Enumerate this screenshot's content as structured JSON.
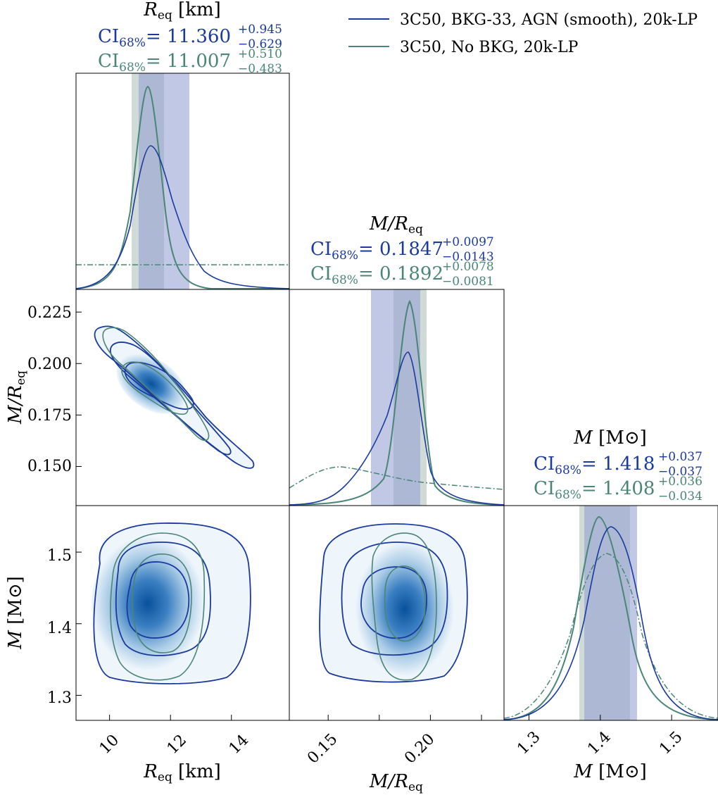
{
  "legend": {
    "items": [
      {
        "label": "3C50, BKG-33, AGN (smooth), 20k-LP",
        "color": "#1a3a9c"
      },
      {
        "label": "3C50, No BKG, 20k-LP",
        "color": "#4a8577"
      }
    ]
  },
  "colors": {
    "series_a": "#1a3a9c",
    "series_b": "#4a8577",
    "band_a": "#8e9bd2",
    "band_b": "#a9bdb7",
    "fill_dark": "#08519c",
    "fill_light": "#deebf7"
  },
  "params": {
    "req": {
      "title_sym": "R",
      "title_sub": "eq",
      "title_unit": " [km]",
      "ci_label": "CI",
      "ci_sub": "68%",
      "ci_a": {
        "val": "= 11.360",
        "plus": "+0.945",
        "minus": "−0.629"
      },
      "ci_b": {
        "val": "= 11.007",
        "plus": "+0.510",
        "minus": "−0.483"
      },
      "ticks": [
        "10",
        "12",
        "14"
      ]
    },
    "compactness": {
      "title_sym": "M/R",
      "title_sub": "eq",
      "title_unit": "",
      "ci_label": "CI",
      "ci_sub": "68%",
      "ci_a": {
        "val": "= 0.1847",
        "plus": "+0.0097",
        "minus": "−0.0143"
      },
      "ci_b": {
        "val": "= 0.1892",
        "plus": "+0.0078",
        "minus": "−0.0081"
      },
      "ticks_x": [
        "0.15",
        "0.20"
      ],
      "ticks_y": [
        "0.225",
        "0.200",
        "0.175",
        "0.150"
      ]
    },
    "mass": {
      "title_sym": "M",
      "title_unit": " [M⊙]",
      "ci_label": "CI",
      "ci_sub": "68%",
      "ci_a": {
        "val": "= 1.418",
        "plus": "+0.037",
        "minus": "−0.037"
      },
      "ci_b": {
        "val": "= 1.408",
        "plus": "+0.036",
        "minus": "−0.034"
      },
      "ticks_x": [
        "1.3",
        "1.4",
        "1.5"
      ],
      "ticks_y": [
        "1.5",
        "1.4",
        "1.3"
      ]
    }
  },
  "axis_labels": {
    "x_req": {
      "sym": "R",
      "sub": "eq",
      "unit": " [km]"
    },
    "x_comp": {
      "sym": "M/R",
      "sub": "eq"
    },
    "x_mass": {
      "sym": "M",
      "unit": " [M⊙]"
    },
    "y_comp": {
      "sym": "M/R",
      "sub": "eq"
    },
    "y_mass": {
      "sym": "M",
      "unit": " [M⊙]"
    }
  },
  "chart_data": {
    "type": "corner",
    "parameters": [
      "R_eq [km]",
      "M/R_eq",
      "M [M_sun]"
    ],
    "ranges": {
      "R_eq": [
        8.9,
        15.9
      ],
      "compactness": [
        0.131,
        0.236
      ],
      "mass": [
        1.265,
        1.565
      ]
    },
    "series": [
      {
        "name": "3C50, BKG-33, AGN (smooth), 20k-LP",
        "R_eq": {
          "median": 11.36,
          "plus": 0.945,
          "minus": 0.629
        },
        "compactness": {
          "median": 0.1847,
          "plus": 0.0097,
          "minus": 0.0143
        },
        "mass": {
          "median": 1.418,
          "plus": 0.037,
          "minus": 0.037
        }
      },
      {
        "name": "3C50, No BKG, 20k-LP",
        "R_eq": {
          "median": 11.007,
          "plus": 0.51,
          "minus": 0.483
        },
        "compactness": {
          "median": 0.1892,
          "plus": 0.0078,
          "minus": 0.0081
        },
        "mass": {
          "median": 1.408,
          "plus": 0.036,
          "minus": 0.034
        }
      }
    ],
    "ticks": {
      "R_eq": [
        10,
        12,
        14
      ],
      "compactness": [
        0.15,
        0.175,
        0.2,
        0.225
      ],
      "mass": [
        1.3,
        1.4,
        1.5
      ]
    }
  }
}
